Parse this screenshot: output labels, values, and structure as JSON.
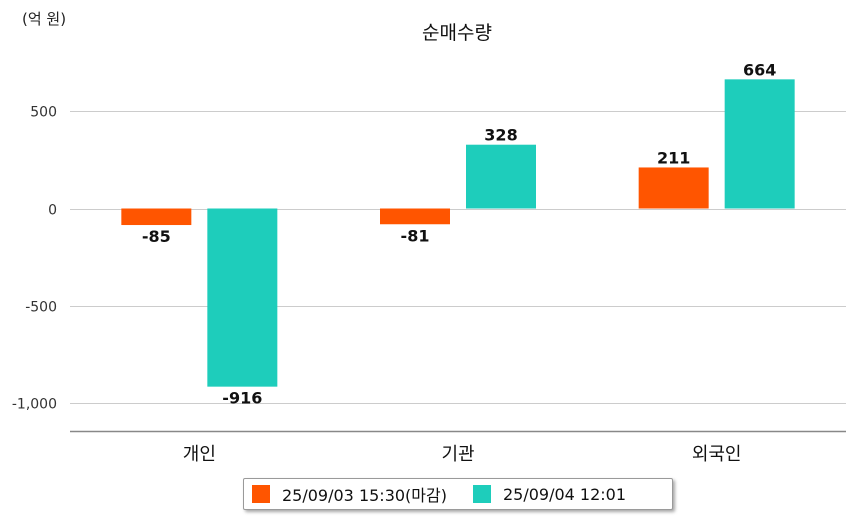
{
  "chart_data": {
    "type": "bar",
    "title": "순매수량",
    "unit_label": "(억 원)",
    "categories": [
      "개인",
      "기관",
      "외국인"
    ],
    "series": [
      {
        "name": "25/09/03 15:30(마감)",
        "color": "#ff5500",
        "values": [
          -85,
          -81,
          211
        ]
      },
      {
        "name": "25/09/04 12:01",
        "color": "#1ecdbb",
        "values": [
          -916,
          328,
          664
        ]
      }
    ],
    "yticks": [
      500,
      0,
      -500,
      -1000
    ],
    "ytick_labels": [
      "500",
      "0",
      "-500",
      "-1,000"
    ],
    "data_labels": [
      [
        "-85",
        "-81",
        "211"
      ],
      [
        "-916",
        "328",
        "664"
      ]
    ],
    "ylim": [
      -1150,
      700
    ],
    "grid": true,
    "legend_position": "bottom"
  }
}
